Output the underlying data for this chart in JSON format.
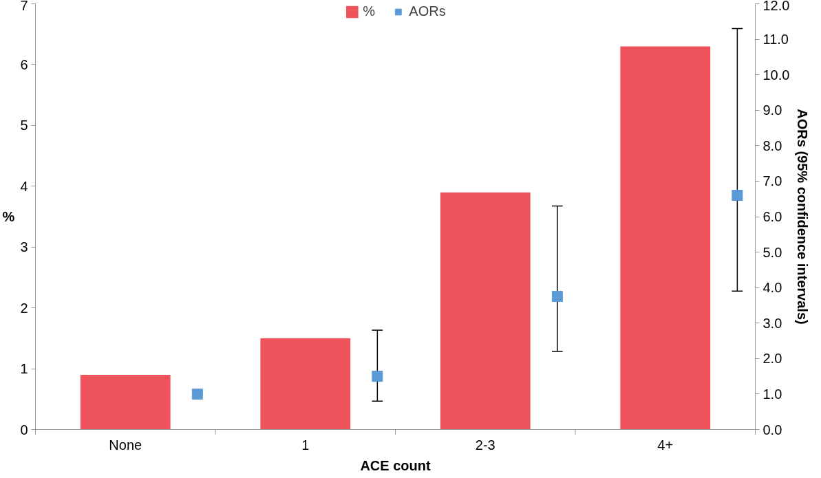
{
  "chart_data": {
    "type": "bar",
    "xlabel": "ACE count",
    "ylabel": "%",
    "y2label": "AORs (95% confidence intervals)",
    "categories": [
      "None",
      "1",
      "2-3",
      "4+"
    ],
    "series": [
      {
        "name": "%",
        "color": "#ef535b",
        "values": [
          0.9,
          1.5,
          3.9,
          6.3
        ]
      },
      {
        "name": "AORs",
        "type": "scatter",
        "axis": "y2",
        "color": "#5b9bd5",
        "x": [
          "None",
          "1",
          "2-3",
          "4+"
        ],
        "values": [
          1.0,
          1.5,
          3.75,
          6.6
        ],
        "errors": [
          null,
          [
            0.8,
            2.8
          ],
          [
            2.2,
            6.3
          ],
          [
            3.9,
            11.3
          ]
        ]
      }
    ],
    "ylim": [
      0,
      7
    ],
    "yticks": [
      0,
      1,
      2,
      3,
      4,
      5,
      6,
      7
    ],
    "y2lim": [
      0,
      12
    ],
    "y2ticks": [
      {
        "value": 0,
        "label": "0.0"
      },
      {
        "value": 1,
        "label": "1.0"
      },
      {
        "value": 2,
        "label": "2.0"
      },
      {
        "value": 3,
        "label": "3.0"
      },
      {
        "value": 4,
        "label": "4.0"
      },
      {
        "value": 5,
        "label": "5.0"
      },
      {
        "value": 6,
        "label": "6.0"
      },
      {
        "value": 7,
        "label": "7.0"
      },
      {
        "value": 8,
        "label": "8.0"
      },
      {
        "value": 9,
        "label": "9.0"
      },
      {
        "value": 10,
        "label": "10.0"
      },
      {
        "value": 11,
        "label": "11.0"
      },
      {
        "value": 12,
        "label": "12.0"
      }
    ],
    "marker": "square",
    "grid": false,
    "legend": "top"
  }
}
